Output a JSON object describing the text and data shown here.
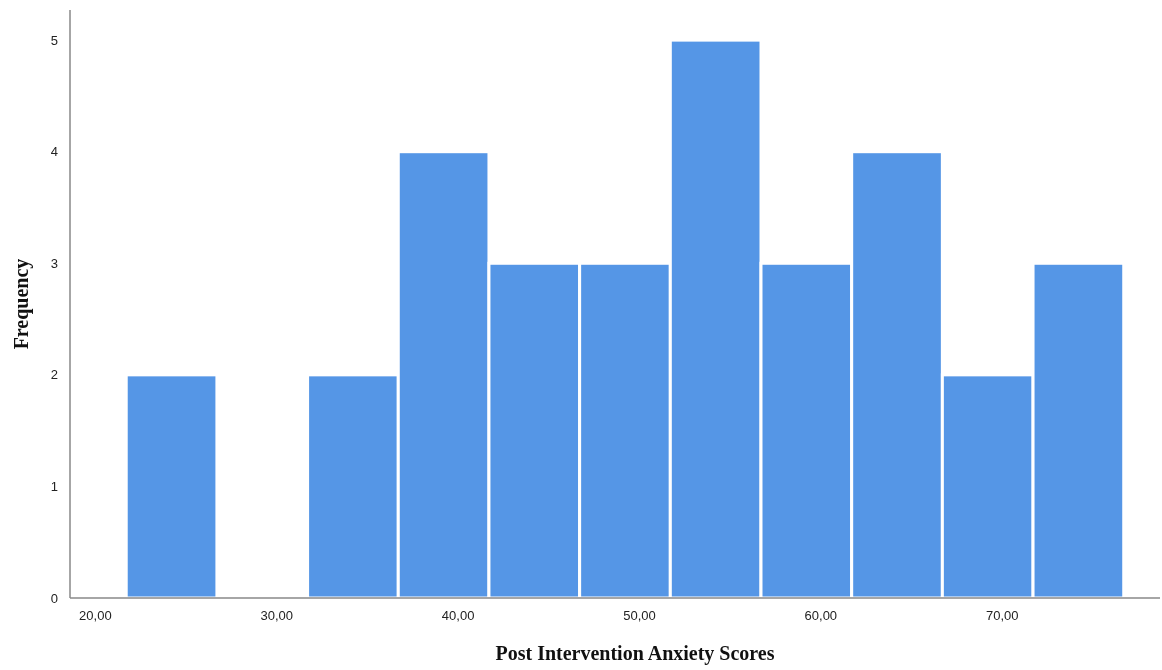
{
  "chart_data": {
    "type": "histogram",
    "xlabel": "Post Intervention Anxiety Scores",
    "ylabel": "Frequency",
    "color": "#5596e6",
    "bins": [
      21.7,
      26.7,
      31.7,
      36.7,
      41.7,
      46.7,
      51.7,
      56.7,
      61.7,
      66.7,
      71.7,
      76.7
    ],
    "values": [
      2,
      0,
      2,
      4,
      3,
      3,
      5,
      3,
      4,
      2,
      3
    ],
    "xlim": [
      18.6,
      78.7
    ],
    "xticks": [
      {
        "value": 20,
        "label": "20,00"
      },
      {
        "value": 30,
        "label": "30,00"
      },
      {
        "value": 40,
        "label": "40,00"
      },
      {
        "value": 50,
        "label": "50,00"
      },
      {
        "value": 60,
        "label": "60,00"
      },
      {
        "value": 70,
        "label": "70,00"
      }
    ],
    "ylim": [
      0,
      5.27
    ],
    "yticks": [
      0,
      1,
      2,
      3,
      4,
      5
    ],
    "grid": false
  }
}
